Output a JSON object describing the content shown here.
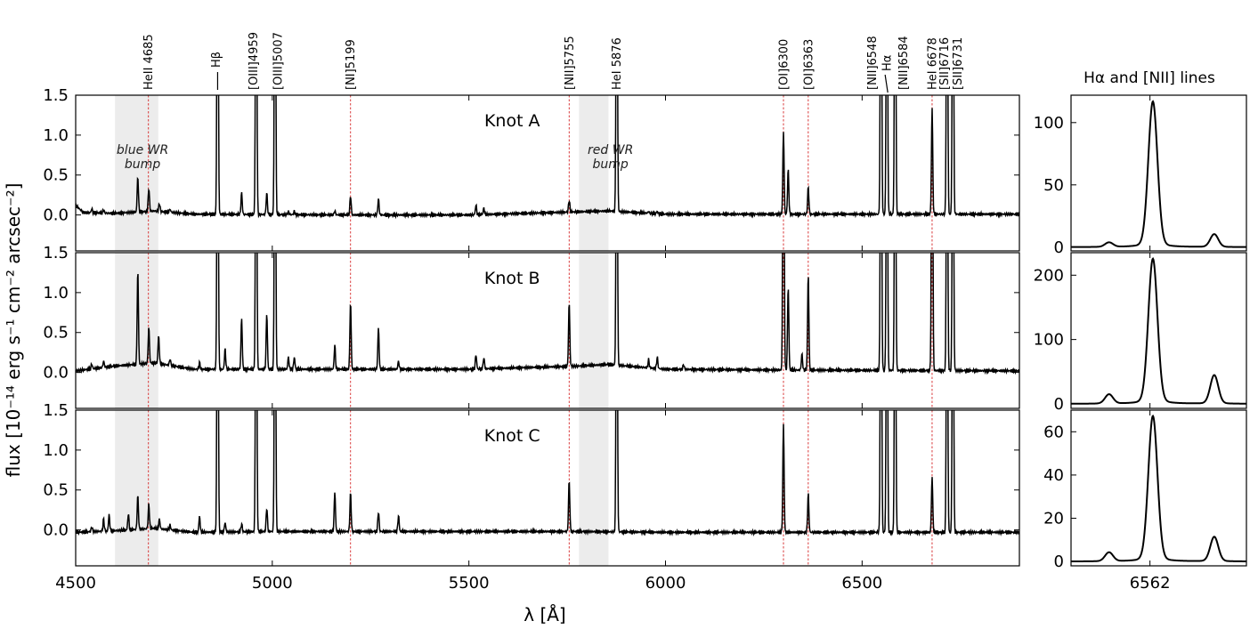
{
  "figure": {
    "xlabel": "λ [Å]",
    "ylabel": "flux [10⁻¹⁴ erg s⁻¹ cm⁻² arcsec⁻²]",
    "side_title": "Hα and [NII] lines",
    "colors": {
      "spectrum": "#000000",
      "marker": "#d62728",
      "wr_band": "#d9d9d9"
    }
  },
  "chart_data": [
    {
      "type": "line",
      "role": "main-spectra",
      "xlim": [
        4500,
        6900
      ],
      "ylim": [
        -0.45,
        1.5
      ],
      "xticks": [
        4500,
        5000,
        5500,
        6000,
        6500
      ],
      "yticks": [
        0.0,
        0.5,
        1.0,
        1.5
      ],
      "grid": false,
      "wr_bands": [
        {
          "label": "blue WR bump",
          "label_lines": [
            "blue WR",
            "bump"
          ],
          "range": [
            4600,
            4710
          ]
        },
        {
          "label": "red WR bump",
          "label_lines": [
            "red WR",
            "bump"
          ],
          "range": [
            5780,
            5855
          ]
        }
      ],
      "line_ids": [
        {
          "label": "HeII 4685",
          "x": 4685,
          "marker": true
        },
        {
          "label": "Hβ",
          "x": 4861,
          "marker": false
        },
        {
          "label": "[OIII]4959",
          "x": 4959,
          "marker": false
        },
        {
          "label": "[OIII]5007",
          "x": 5007,
          "marker": false
        },
        {
          "label": "[NI]5199",
          "x": 5199,
          "marker": true
        },
        {
          "label": "[NII]5755",
          "x": 5755,
          "marker": true
        },
        {
          "label": "HeI 5876",
          "x": 5876,
          "marker": false
        },
        {
          "label": "[OI]6300",
          "x": 6300,
          "marker": true
        },
        {
          "label": "[OI]6363",
          "x": 6363,
          "marker": true
        },
        {
          "label": "[NII]6548",
          "x": 6548,
          "marker": false
        },
        {
          "label": "Hα",
          "x": 6563,
          "marker": false
        },
        {
          "label": "[NII]6584",
          "x": 6584,
          "marker": false
        },
        {
          "label": "HeI 6678",
          "x": 6678,
          "marker": true
        },
        {
          "label": "[SII]6716",
          "x": 6716,
          "marker": false
        },
        {
          "label": "[SII]6731",
          "x": 6731,
          "marker": false
        }
      ],
      "series": [
        {
          "name": "Knot A",
          "continuum": [
            [
              4500,
              0.12
            ],
            [
              4520,
              0.03
            ],
            [
              4600,
              0.02
            ],
            [
              4700,
              0.05
            ],
            [
              4800,
              0.01
            ],
            [
              5200,
              0.0
            ],
            [
              5500,
              0.0
            ],
            [
              5780,
              0.04
            ],
            [
              5855,
              0.05
            ],
            [
              6000,
              0.01
            ],
            [
              6900,
              0.01
            ]
          ],
          "lines": [
            [
              4541,
              0.05
            ],
            [
              4571,
              0.04
            ],
            [
              4658,
              0.44
            ],
            [
              4686,
              0.29
            ],
            [
              4713,
              0.1
            ],
            [
              4740,
              0.04
            ],
            [
              4861,
              5.0
            ],
            [
              4922,
              0.27
            ],
            [
              4959,
              5.0
            ],
            [
              4986,
              0.27
            ],
            [
              5007,
              5.0
            ],
            [
              5041,
              0.04
            ],
            [
              5056,
              0.04
            ],
            [
              5159,
              0.05
            ],
            [
              5199,
              0.24
            ],
            [
              5270,
              0.2
            ],
            [
              5518,
              0.12
            ],
            [
              5538,
              0.08
            ],
            [
              5755,
              0.15
            ],
            [
              5876,
              5.0
            ],
            [
              5957,
              0.02
            ],
            [
              5979,
              0.03
            ],
            [
              6300,
              1.04
            ],
            [
              6312,
              0.56
            ],
            [
              6363,
              0.34
            ],
            [
              6548,
              5.0
            ],
            [
              6563,
              5.0
            ],
            [
              6584,
              5.0
            ],
            [
              6678,
              1.34
            ],
            [
              6716,
              5.0
            ],
            [
              6731,
              5.0
            ]
          ]
        },
        {
          "name": "Knot B",
          "continuum": [
            [
              4500,
              0.02
            ],
            [
              4600,
              0.08
            ],
            [
              4700,
              0.12
            ],
            [
              4800,
              0.04
            ],
            [
              5000,
              0.04
            ],
            [
              5500,
              0.04
            ],
            [
              5780,
              0.08
            ],
            [
              5855,
              0.1
            ],
            [
              6000,
              0.04
            ],
            [
              6300,
              0.03
            ],
            [
              6900,
              0.02
            ]
          ],
          "lines": [
            [
              4541,
              0.06
            ],
            [
              4571,
              0.08
            ],
            [
              4658,
              1.17
            ],
            [
              4686,
              0.45
            ],
            [
              4711,
              0.35
            ],
            [
              4740,
              0.08
            ],
            [
              4815,
              0.08
            ],
            [
              4861,
              5.0
            ],
            [
              4880,
              0.25
            ],
            [
              4922,
              0.64
            ],
            [
              4959,
              5.0
            ],
            [
              4986,
              0.7
            ],
            [
              5007,
              5.0
            ],
            [
              5041,
              0.15
            ],
            [
              5056,
              0.15
            ],
            [
              5159,
              0.3
            ],
            [
              5199,
              0.84
            ],
            [
              5270,
              0.52
            ],
            [
              5321,
              0.1
            ],
            [
              5518,
              0.18
            ],
            [
              5538,
              0.14
            ],
            [
              5755,
              0.8
            ],
            [
              5876,
              5.0
            ],
            [
              5957,
              0.1
            ],
            [
              5979,
              0.14
            ],
            [
              6046,
              0.06
            ],
            [
              6300,
              5.0
            ],
            [
              6312,
              1.05
            ],
            [
              6347,
              0.2
            ],
            [
              6363,
              1.2
            ],
            [
              6548,
              5.0
            ],
            [
              6563,
              5.0
            ],
            [
              6584,
              5.0
            ],
            [
              6678,
              5.0
            ],
            [
              6716,
              5.0
            ],
            [
              6731,
              5.0
            ]
          ]
        },
        {
          "name": "Knot C",
          "continuum": [
            [
              4500,
              -0.03
            ],
            [
              4600,
              -0.01
            ],
            [
              4700,
              0.02
            ],
            [
              4800,
              -0.03
            ],
            [
              5000,
              -0.02
            ],
            [
              5500,
              -0.02
            ],
            [
              5780,
              -0.02
            ],
            [
              6000,
              -0.03
            ],
            [
              6900,
              -0.03
            ]
          ],
          "lines": [
            [
              4541,
              0.06
            ],
            [
              4571,
              0.15
            ],
            [
              4585,
              0.2
            ],
            [
              4634,
              0.2
            ],
            [
              4658,
              0.42
            ],
            [
              4686,
              0.3
            ],
            [
              4713,
              0.12
            ],
            [
              4740,
              0.06
            ],
            [
              4815,
              0.2
            ],
            [
              4861,
              5.0
            ],
            [
              4880,
              0.12
            ],
            [
              4922,
              0.1
            ],
            [
              4959,
              5.0
            ],
            [
              4986,
              0.3
            ],
            [
              5007,
              5.0
            ],
            [
              5159,
              0.5
            ],
            [
              5199,
              0.48
            ],
            [
              5270,
              0.25
            ],
            [
              5321,
              0.2
            ],
            [
              5755,
              0.64
            ],
            [
              5876,
              5.0
            ],
            [
              6300,
              1.36
            ],
            [
              6363,
              0.48
            ],
            [
              6548,
              5.0
            ],
            [
              6563,
              5.0
            ],
            [
              6584,
              5.0
            ],
            [
              6678,
              0.7
            ],
            [
              6716,
              5.0
            ],
            [
              6731,
              5.0
            ]
          ]
        }
      ]
    },
    {
      "type": "line",
      "role": "halpha-zoom",
      "title": "Hα and [NII] lines",
      "xlim": [
        6535,
        6595
      ],
      "xticks": [
        6562
      ],
      "grid": false,
      "panels": [
        {
          "name": "Knot A",
          "ylim": [
            -3,
            122
          ],
          "yticks": [
            0,
            50,
            100
          ],
          "peaks": [
            [
              6548,
              3.5
            ],
            [
              6563,
              113
            ],
            [
              6584,
              10
            ]
          ]
        },
        {
          "name": "Knot B",
          "ylim": [
            -7,
            235
          ],
          "yticks": [
            0,
            100,
            200
          ],
          "peaks": [
            [
              6548,
              14
            ],
            [
              6563,
              218
            ],
            [
              6584,
              43
            ]
          ]
        },
        {
          "name": "Knot C",
          "ylim": [
            -2,
            70
          ],
          "yticks": [
            0,
            20,
            40,
            60
          ],
          "peaks": [
            [
              6548,
              4
            ],
            [
              6563,
              65
            ],
            [
              6584,
              11
            ]
          ]
        }
      ]
    }
  ]
}
